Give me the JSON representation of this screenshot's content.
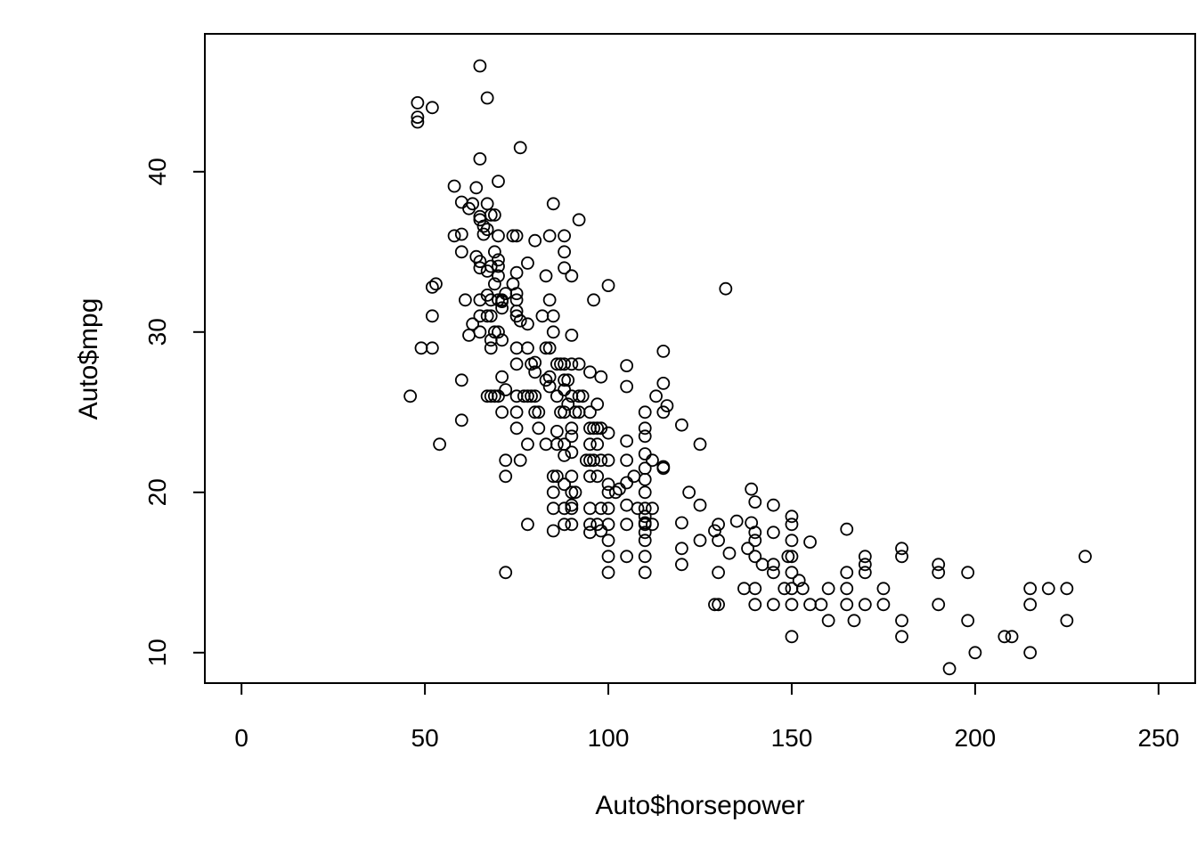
{
  "chart_data": {
    "type": "scatter",
    "title": "",
    "xlabel": "Auto$horsepower",
    "ylabel": "Auto$mpg",
    "xlim": [
      -10,
      260
    ],
    "ylim": [
      8.1,
      48.6
    ],
    "xticks": [
      0,
      50,
      100,
      150,
      200,
      250
    ],
    "yticks": [
      10,
      20,
      30,
      40
    ],
    "xtick_labels": [
      "0",
      "50",
      "100",
      "150",
      "200",
      "250"
    ],
    "ytick_labels": [
      "10",
      "20",
      "30",
      "40"
    ],
    "grid": false,
    "legend": "none",
    "marker": "open-circle",
    "color": "#000000",
    "points": [
      [
        46,
        26
      ],
      [
        48,
        43.1
      ],
      [
        48,
        43.4
      ],
      [
        48,
        44.3
      ],
      [
        49,
        29
      ],
      [
        52,
        44
      ],
      [
        52,
        29
      ],
      [
        52,
        31
      ],
      [
        52,
        32.8
      ],
      [
        53,
        33
      ],
      [
        54,
        23
      ],
      [
        58,
        39.1
      ],
      [
        58,
        36
      ],
      [
        60,
        38.1
      ],
      [
        60,
        36.1
      ],
      [
        60,
        35
      ],
      [
        60,
        27
      ],
      [
        60,
        24.5
      ],
      [
        61,
        32
      ],
      [
        62,
        37.7
      ],
      [
        62,
        29.8
      ],
      [
        63,
        30.5
      ],
      [
        63,
        38
      ],
      [
        64,
        39
      ],
      [
        64,
        34.7
      ],
      [
        65,
        46.6
      ],
      [
        65,
        40.8
      ],
      [
        65,
        37.2
      ],
      [
        65,
        37
      ],
      [
        65,
        34.4
      ],
      [
        65,
        34
      ],
      [
        65,
        32
      ],
      [
        65,
        31
      ],
      [
        65,
        30
      ],
      [
        66,
        36.1
      ],
      [
        66,
        36.6
      ],
      [
        67,
        44.6
      ],
      [
        67,
        38
      ],
      [
        67,
        36.4
      ],
      [
        67,
        33.8
      ],
      [
        67,
        32.3
      ],
      [
        67,
        31
      ],
      [
        67,
        26
      ],
      [
        68,
        37.3
      ],
      [
        68,
        34.1
      ],
      [
        68,
        32
      ],
      [
        68,
        31
      ],
      [
        68,
        29.5
      ],
      [
        68,
        29
      ],
      [
        68,
        26
      ],
      [
        69,
        37.3
      ],
      [
        69,
        35
      ],
      [
        69,
        33
      ],
      [
        69,
        30
      ],
      [
        69,
        26
      ],
      [
        70,
        39.4
      ],
      [
        70,
        36
      ],
      [
        70,
        34.5
      ],
      [
        70,
        34.1
      ],
      [
        70,
        33.5
      ],
      [
        70,
        32
      ],
      [
        70,
        30
      ],
      [
        70,
        26
      ],
      [
        71,
        32
      ],
      [
        71,
        31.9
      ],
      [
        71,
        31.5
      ],
      [
        71,
        29.5
      ],
      [
        71,
        27.2
      ],
      [
        71,
        25
      ],
      [
        72,
        32.4
      ],
      [
        72,
        26.4
      ],
      [
        72,
        22
      ],
      [
        72,
        21
      ],
      [
        72,
        15
      ],
      [
        74,
        36
      ],
      [
        74,
        33
      ],
      [
        75,
        36
      ],
      [
        75,
        33.7
      ],
      [
        75,
        32.4
      ],
      [
        75,
        32
      ],
      [
        75,
        31.3
      ],
      [
        75,
        31
      ],
      [
        75,
        29
      ],
      [
        75,
        28
      ],
      [
        75,
        26
      ],
      [
        75,
        25
      ],
      [
        75,
        24
      ],
      [
        76,
        41.5
      ],
      [
        76,
        30.7
      ],
      [
        76,
        22
      ],
      [
        77,
        26
      ],
      [
        78,
        34.3
      ],
      [
        78,
        30.5
      ],
      [
        78,
        26
      ],
      [
        78,
        23
      ],
      [
        78,
        29
      ],
      [
        78,
        18
      ],
      [
        79,
        28
      ],
      [
        79,
        26
      ],
      [
        80,
        35.7
      ],
      [
        80,
        28.1
      ],
      [
        80,
        27.5
      ],
      [
        80,
        26
      ],
      [
        80,
        25
      ],
      [
        81,
        25
      ],
      [
        81,
        24
      ],
      [
        82,
        31
      ],
      [
        83,
        33.5
      ],
      [
        83,
        27
      ],
      [
        83,
        29
      ],
      [
        83,
        23
      ],
      [
        84,
        36
      ],
      [
        84,
        32
      ],
      [
        84,
        29
      ],
      [
        84,
        27.2
      ],
      [
        84,
        26.6
      ],
      [
        85,
        38
      ],
      [
        85,
        31
      ],
      [
        85,
        30
      ],
      [
        85,
        21
      ],
      [
        85,
        20
      ],
      [
        85,
        19
      ],
      [
        85,
        17.6
      ],
      [
        86,
        28
      ],
      [
        86,
        26
      ],
      [
        86,
        23.8
      ],
      [
        86,
        23
      ],
      [
        86,
        21
      ],
      [
        87,
        28
      ],
      [
        87,
        25
      ],
      [
        88,
        36
      ],
      [
        88,
        35
      ],
      [
        88,
        34
      ],
      [
        88,
        28
      ],
      [
        88,
        27
      ],
      [
        88,
        26.4
      ],
      [
        88,
        25
      ],
      [
        88,
        23
      ],
      [
        88,
        22.3
      ],
      [
        88,
        20.5
      ],
      [
        88,
        19
      ],
      [
        88,
        18
      ],
      [
        89,
        27
      ],
      [
        89,
        25.5
      ],
      [
        90,
        33.5
      ],
      [
        90,
        29.8
      ],
      [
        90,
        28
      ],
      [
        90,
        26
      ],
      [
        90,
        24
      ],
      [
        90,
        23.5
      ],
      [
        90,
        22.5
      ],
      [
        90,
        21
      ],
      [
        90,
        20
      ],
      [
        90,
        19.2
      ],
      [
        90,
        19
      ],
      [
        90,
        18
      ],
      [
        91,
        25
      ],
      [
        91,
        20
      ],
      [
        92,
        37
      ],
      [
        92,
        28
      ],
      [
        92,
        26
      ],
      [
        92,
        25
      ],
      [
        93,
        26
      ],
      [
        94,
        22
      ],
      [
        95,
        27.5
      ],
      [
        95,
        25
      ],
      [
        95,
        24
      ],
      [
        95,
        23
      ],
      [
        95,
        22
      ],
      [
        95,
        21
      ],
      [
        95,
        19
      ],
      [
        95,
        18
      ],
      [
        95,
        17.5
      ],
      [
        96,
        32
      ],
      [
        96,
        24
      ],
      [
        96,
        22
      ],
      [
        97,
        25.5
      ],
      [
        97,
        24
      ],
      [
        97,
        23
      ],
      [
        97,
        21
      ],
      [
        97,
        18
      ],
      [
        98,
        27.2
      ],
      [
        98,
        24
      ],
      [
        98,
        22
      ],
      [
        98,
        19
      ],
      [
        98,
        17.6
      ],
      [
        100,
        32.9
      ],
      [
        100,
        23.7
      ],
      [
        100,
        22
      ],
      [
        100,
        20.5
      ],
      [
        100,
        20
      ],
      [
        100,
        19
      ],
      [
        100,
        18
      ],
      [
        100,
        17
      ],
      [
        100,
        16
      ],
      [
        100,
        15
      ],
      [
        102,
        20
      ],
      [
        103,
        20.2
      ],
      [
        105,
        27.9
      ],
      [
        105,
        26.6
      ],
      [
        105,
        23.2
      ],
      [
        105,
        22
      ],
      [
        105,
        20.6
      ],
      [
        105,
        19.2
      ],
      [
        105,
        18
      ],
      [
        105,
        16
      ],
      [
        107,
        21
      ],
      [
        108,
        19
      ],
      [
        110,
        25
      ],
      [
        110,
        24
      ],
      [
        110,
        23.5
      ],
      [
        110,
        22.4
      ],
      [
        110,
        21.5
      ],
      [
        110,
        20.8
      ],
      [
        110,
        20
      ],
      [
        110,
        19
      ],
      [
        110,
        18.5
      ],
      [
        110,
        18.1
      ],
      [
        110,
        18
      ],
      [
        110,
        17.5
      ],
      [
        110,
        17
      ],
      [
        110,
        16
      ],
      [
        110,
        15
      ],
      [
        112,
        22
      ],
      [
        112,
        19
      ],
      [
        112,
        18
      ],
      [
        113,
        26
      ],
      [
        115,
        28.8
      ],
      [
        115,
        26.8
      ],
      [
        115,
        25
      ],
      [
        115,
        21.6
      ],
      [
        115,
        21.5
      ],
      [
        116,
        25.4
      ],
      [
        120,
        24.2
      ],
      [
        120,
        18.1
      ],
      [
        120,
        16.5
      ],
      [
        120,
        15.5
      ],
      [
        122,
        20
      ],
      [
        125,
        23
      ],
      [
        125,
        19.2
      ],
      [
        125,
        17
      ],
      [
        129,
        17.6
      ],
      [
        129,
        13
      ],
      [
        130,
        18
      ],
      [
        130,
        17
      ],
      [
        130,
        15
      ],
      [
        130,
        13
      ],
      [
        132,
        32.7
      ],
      [
        133,
        16.2
      ],
      [
        135,
        18.2
      ],
      [
        137,
        14
      ],
      [
        138,
        16.5
      ],
      [
        139,
        20.2
      ],
      [
        139,
        18.1
      ],
      [
        140,
        19.4
      ],
      [
        140,
        17.5
      ],
      [
        140,
        17
      ],
      [
        140,
        16
      ],
      [
        140,
        14
      ],
      [
        140,
        13
      ],
      [
        142,
        15.5
      ],
      [
        145,
        19.2
      ],
      [
        145,
        17.5
      ],
      [
        145,
        15.5
      ],
      [
        145,
        15
      ],
      [
        145,
        13
      ],
      [
        148,
        14
      ],
      [
        149,
        16
      ],
      [
        150,
        18.5
      ],
      [
        150,
        18
      ],
      [
        150,
        17
      ],
      [
        150,
        16
      ],
      [
        150,
        15
      ],
      [
        150,
        14
      ],
      [
        150,
        13
      ],
      [
        150,
        11
      ],
      [
        152,
        14.5
      ],
      [
        153,
        14
      ],
      [
        155,
        16.9
      ],
      [
        155,
        13
      ],
      [
        158,
        13
      ],
      [
        160,
        14
      ],
      [
        160,
        12
      ],
      [
        165,
        17.7
      ],
      [
        165,
        15
      ],
      [
        165,
        14
      ],
      [
        165,
        13
      ],
      [
        167,
        12
      ],
      [
        170,
        16
      ],
      [
        170,
        15.5
      ],
      [
        170,
        15
      ],
      [
        170,
        13
      ],
      [
        175,
        14
      ],
      [
        175,
        13
      ],
      [
        180,
        16.5
      ],
      [
        180,
        16
      ],
      [
        180,
        12
      ],
      [
        180,
        11
      ],
      [
        190,
        15.5
      ],
      [
        190,
        15
      ],
      [
        190,
        13
      ],
      [
        193,
        9
      ],
      [
        198,
        15
      ],
      [
        198,
        12
      ],
      [
        200,
        10
      ],
      [
        208,
        11
      ],
      [
        210,
        11
      ],
      [
        215,
        14
      ],
      [
        215,
        13
      ],
      [
        215,
        10
      ],
      [
        220,
        14
      ],
      [
        225,
        14
      ],
      [
        225,
        12
      ],
      [
        230,
        16
      ]
    ]
  }
}
